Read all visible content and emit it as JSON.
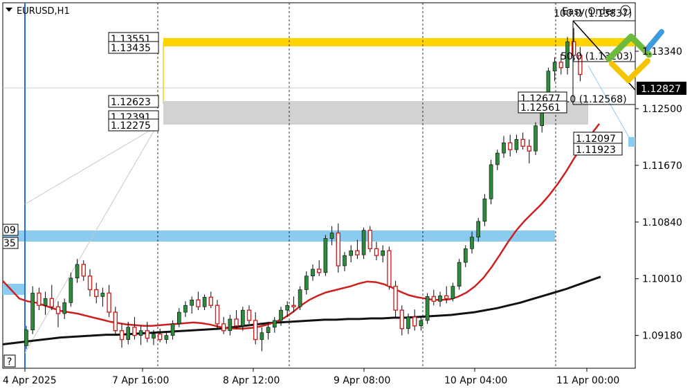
{
  "symbol": {
    "name": "EURUSD,H1"
  },
  "colors": {
    "bull": "#2e8b3e",
    "bear": "#cc2222",
    "ma_fast": "#cc1f1f",
    "ma_slow": "#111111",
    "supply_zone": "#ffd400",
    "gray_zone": "#d2d2d2",
    "blue_zone": "#8ccbf0",
    "current_price_bg": "#000000",
    "logo_green": "#6dbb3d",
    "logo_blue": "#3d9be0",
    "logo_yellow": "#f5c400"
  },
  "logo": {
    "text": "Easy Order",
    "icon": "help-circle-icon"
  },
  "help_marker": "?",
  "current_price": "1.12827",
  "price_axis_labels": [
    "1.13340",
    "1.12500",
    "1.11670",
    "1.10840",
    "1.10010",
    "1.09180"
  ],
  "time_axis_labels": [
    "4 Apr 2025",
    "7 Apr 16:00",
    "8 Apr 12:00",
    "9 Apr 08:00",
    "10 Apr 04:00",
    "11 Apr 00:00"
  ],
  "level_labels_left": [
    "1.13551",
    "1.13435",
    "1.12623",
    "1.12391",
    "1.12275"
  ],
  "level_labels_mid": [
    "1.12677",
    "1.12561",
    "1.12097",
    "1.11923"
  ],
  "level_labels_edge": [
    "09",
    "35"
  ],
  "fib_labels": [
    "100.0 (1.13837)",
    "50.0 (1.13203)",
    "0.0 (1.12568)"
  ],
  "chart_data": {
    "type": "candlestick",
    "ylim": [
      1.087,
      1.1405
    ],
    "candles": [
      [
        1.0903,
        1.0932,
        1.0898,
        1.0926
      ],
      [
        1.0926,
        1.099,
        1.092,
        1.098
      ],
      [
        1.098,
        1.0988,
        1.0955,
        1.0962
      ],
      [
        1.0962,
        1.0982,
        1.0948,
        1.0972
      ],
      [
        1.0972,
        1.0992,
        1.0955,
        1.096
      ],
      [
        1.096,
        1.0968,
        1.093,
        1.095
      ],
      [
        1.095,
        1.0972,
        1.0942,
        1.0966
      ],
      [
        1.0966,
        1.101,
        1.096,
        1.1002
      ],
      [
        1.1002,
        1.103,
        1.0995,
        1.1022
      ],
      [
        1.1022,
        1.1028,
        1.0998,
        1.1005
      ],
      [
        1.1005,
        1.1015,
        1.0975,
        1.0985
      ],
      [
        1.0985,
        1.0995,
        1.0965,
        1.0975
      ],
      [
        1.0975,
        1.0988,
        1.096,
        1.098
      ],
      [
        1.098,
        1.0992,
        1.0945,
        1.0952
      ],
      [
        1.0952,
        1.096,
        1.0918,
        1.0925
      ],
      [
        1.0925,
        1.0935,
        1.09,
        1.0912
      ],
      [
        1.0912,
        1.0938,
        1.0905,
        1.093
      ],
      [
        1.093,
        1.0945,
        1.0912,
        1.0918
      ],
      [
        1.0918,
        1.0932,
        1.0904,
        1.0925
      ],
      [
        1.0925,
        1.0938,
        1.0908,
        1.0914
      ],
      [
        1.0914,
        1.0926,
        1.0904,
        1.092
      ],
      [
        1.092,
        1.0928,
        1.0908,
        1.0912
      ],
      [
        1.0912,
        1.0924,
        1.0906,
        1.0918
      ],
      [
        1.0918,
        1.094,
        1.0912,
        1.0935
      ],
      [
        1.0935,
        1.0958,
        1.093,
        1.0952
      ],
      [
        1.0952,
        1.0968,
        1.0945,
        1.0962
      ],
      [
        1.0962,
        1.0975,
        1.095,
        1.097
      ],
      [
        1.097,
        1.0982,
        1.0955,
        1.096
      ],
      [
        1.096,
        1.0978,
        1.0955,
        1.0974
      ],
      [
        1.0974,
        1.0982,
        1.0958,
        1.0962
      ],
      [
        1.0962,
        1.097,
        1.0928,
        1.0935
      ],
      [
        1.0935,
        1.0945,
        1.092,
        1.0925
      ],
      [
        1.0925,
        1.0948,
        1.0918,
        1.0942
      ],
      [
        1.0942,
        1.0955,
        1.0928,
        1.0932
      ],
      [
        1.0932,
        1.096,
        1.0925,
        1.0955
      ],
      [
        1.0955,
        1.0962,
        1.0935,
        1.094
      ],
      [
        1.094,
        1.0952,
        1.0905,
        1.0912
      ],
      [
        1.0912,
        1.093,
        1.0895,
        1.0922
      ],
      [
        1.0922,
        1.0938,
        1.0912,
        1.093
      ],
      [
        1.093,
        1.0945,
        1.0922,
        1.094
      ],
      [
        1.094,
        1.096,
        1.0932,
        1.0955
      ],
      [
        1.0955,
        1.0968,
        1.0945,
        1.0962
      ],
      [
        1.0962,
        1.0975,
        1.0952,
        1.096
      ],
      [
        1.096,
        1.099,
        1.0955,
        1.0985
      ],
      [
        1.0985,
        1.1012,
        1.0978,
        1.1005
      ],
      [
        1.1005,
        1.1022,
        1.0998,
        1.1015
      ],
      [
        1.1015,
        1.1028,
        1.1005,
        1.101
      ],
      [
        1.101,
        1.1065,
        1.1005,
        1.106
      ],
      [
        1.106,
        1.1078,
        1.105,
        1.1068
      ],
      [
        1.1068,
        1.1082,
        1.101,
        1.102
      ],
      [
        1.102,
        1.104,
        1.1012,
        1.1035
      ],
      [
        1.1035,
        1.105,
        1.1025,
        1.1042
      ],
      [
        1.1042,
        1.1058,
        1.103,
        1.1036
      ],
      [
        1.1036,
        1.1076,
        1.103,
        1.1072
      ],
      [
        1.1072,
        1.1078,
        1.104,
        1.1045
      ],
      [
        1.1045,
        1.1055,
        1.1028,
        1.1035
      ],
      [
        1.1035,
        1.105,
        1.1025,
        1.1042
      ],
      [
        1.1042,
        1.1048,
        1.0985,
        1.099
      ],
      [
        1.099,
        1.0998,
        1.0945,
        1.0955
      ],
      [
        1.0955,
        1.0962,
        1.0918,
        1.0928
      ],
      [
        1.0928,
        1.095,
        1.092,
        1.0945
      ],
      [
        1.0945,
        1.0956,
        1.0925,
        1.0932
      ],
      [
        1.0932,
        1.0945,
        1.0925,
        1.094
      ],
      [
        1.094,
        1.098,
        1.0935,
        1.0975
      ],
      [
        1.0975,
        1.0985,
        1.0962,
        1.0968
      ],
      [
        1.0968,
        1.0982,
        1.096,
        1.0976
      ],
      [
        1.0976,
        1.099,
        1.0965,
        1.0972
      ],
      [
        1.0972,
        1.0995,
        1.0968,
        1.099
      ],
      [
        1.099,
        1.103,
        1.0985,
        1.1025
      ],
      [
        1.1025,
        1.105,
        1.1018,
        1.1045
      ],
      [
        1.1045,
        1.107,
        1.1038,
        1.1062
      ],
      [
        1.1062,
        1.109,
        1.1055,
        1.1085
      ],
      [
        1.1085,
        1.1125,
        1.1078,
        1.1118
      ],
      [
        1.1118,
        1.1175,
        1.111,
        1.1168
      ],
      [
        1.1168,
        1.119,
        1.116,
        1.1185
      ],
      [
        1.1185,
        1.121,
        1.1178,
        1.12
      ],
      [
        1.12,
        1.1212,
        1.118,
        1.119
      ],
      [
        1.119,
        1.1212,
        1.1185,
        1.1205
      ],
      [
        1.1205,
        1.1215,
        1.119,
        1.1195
      ],
      [
        1.1195,
        1.1205,
        1.117,
        1.1188
      ],
      [
        1.1188,
        1.123,
        1.1182,
        1.1225
      ],
      [
        1.1225,
        1.1265,
        1.1215,
        1.1258
      ],
      [
        1.1258,
        1.131,
        1.125,
        1.1305
      ],
      [
        1.1305,
        1.1325,
        1.129,
        1.1318
      ],
      [
        1.1318,
        1.133,
        1.13,
        1.131
      ],
      [
        1.131,
        1.1355,
        1.13,
        1.1348
      ],
      [
        1.1348,
        1.1368,
        1.132,
        1.1328
      ],
      [
        1.1328,
        1.134,
        1.129,
        1.13
      ]
    ],
    "ma_fast": [
      [
        1.0998,
        1.0985,
        1.0972,
        1.0968,
        1.0966,
        1.0962,
        1.0958,
        1.0954,
        1.0952,
        1.095,
        1.0947,
        1.0944,
        1.0941,
        1.0938,
        1.0936,
        1.0934,
        1.0933,
        1.0932,
        1.0932,
        1.0933,
        1.0934,
        1.0935,
        1.0936,
        1.0937,
        1.0936,
        1.0934,
        1.0931,
        1.0929,
        1.0928,
        1.0928,
        1.0929,
        1.0931,
        1.0934,
        1.0938,
        1.0944,
        1.0952,
        1.0962,
        1.097,
        1.0976,
        1.0981,
        1.0984,
        1.0987,
        1.099,
        1.0994,
        1.0997,
        1.0996,
        1.0993,
        1.0988,
        1.0982,
        1.0977,
        1.0974,
        1.0972,
        1.097,
        1.097,
        1.0971,
        1.0975,
        1.0981,
        1.099,
        1.1002,
        1.1018,
        1.1036,
        1.1055,
        1.1072,
        1.1086,
        1.1098,
        1.111,
        1.1124,
        1.114,
        1.1158,
        1.1178,
        1.1196,
        1.1212,
        1.1228
      ]
    ],
    "ma_slow": [
      [
        1.0905,
        1.0907,
        1.0909,
        1.0911,
        1.0913,
        1.0915,
        1.0916,
        1.0917,
        1.0918,
        1.0919,
        1.0919,
        1.092,
        1.0921,
        1.0922,
        1.0923,
        1.0924,
        1.0925,
        1.0926,
        1.0927,
        1.0928,
        1.093,
        1.0932,
        1.0934,
        1.0936,
        1.0937,
        1.0938,
        1.0939,
        1.094,
        1.0941,
        1.0941,
        1.0942,
        1.0942,
        1.0943,
        1.0943,
        1.0944,
        1.0944,
        1.0945,
        1.0946,
        1.0947,
        1.0948,
        1.095,
        1.0952,
        1.0955,
        1.0958,
        1.0962,
        1.0966,
        1.0971,
        1.0976,
        1.0981,
        1.0986,
        1.0992,
        1.0998,
        1.1004
      ]
    ]
  }
}
